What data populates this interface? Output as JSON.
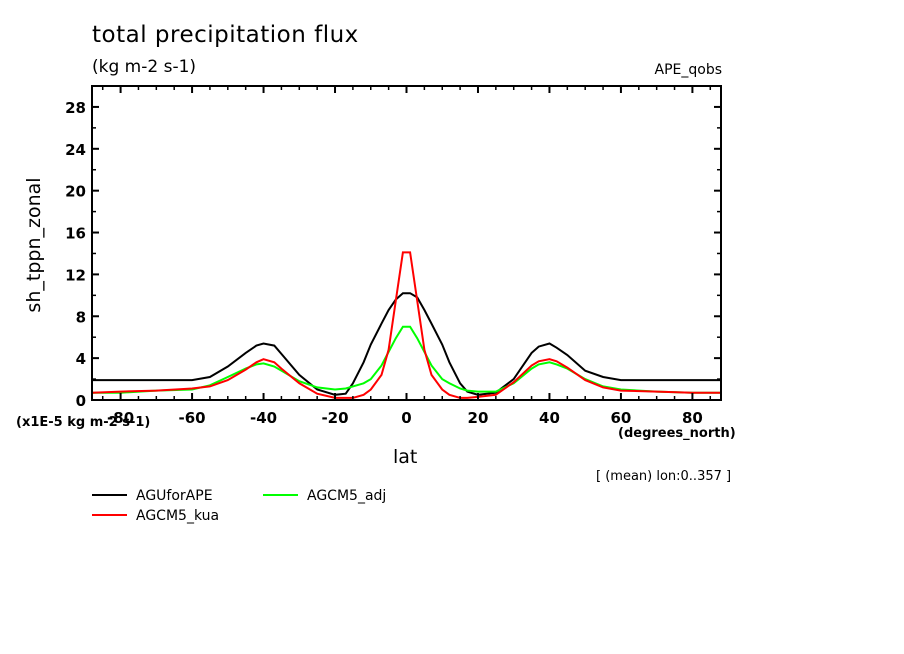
{
  "chart_data": {
    "type": "line",
    "title": "total precipitation flux",
    "units": "(kg m-2 s-1)",
    "dataset_label": "APE_qobs",
    "ylabel": "sh_tppn_zonal",
    "xlabel": "lat",
    "x_units": "(degrees_north)",
    "y_scale_note": "(x1E-5 kg m-2 s-1)",
    "region_note": "[ (mean) lon:0..357 ]",
    "xlim": [
      -88,
      88
    ],
    "ylim": [
      0,
      30
    ],
    "x_ticks": [
      -80,
      -60,
      -40,
      -20,
      0,
      20,
      40,
      60,
      80
    ],
    "x_tick_labels": [
      "-80",
      "-60",
      "-40",
      "-20",
      "0",
      "20",
      "40",
      "60",
      "80"
    ],
    "y_ticks": [
      0,
      4,
      8,
      12,
      16,
      20,
      24,
      28
    ],
    "y_tick_labels": [
      "0",
      "4",
      "8",
      "12",
      "16",
      "20",
      "24",
      "28"
    ],
    "legend": "bottom-left",
    "x": [
      -88,
      -80,
      -70,
      -60,
      -55,
      -50,
      -45,
      -42,
      -40,
      -37,
      -35,
      -30,
      -25,
      -20,
      -17,
      -15,
      -12,
      -10,
      -7,
      -5,
      -3,
      -1,
      1,
      3,
      5,
      7,
      10,
      12,
      15,
      17,
      20,
      25,
      30,
      35,
      37,
      40,
      42,
      45,
      50,
      55,
      60,
      70,
      80,
      88
    ],
    "series": [
      {
        "name": "AGUforAPE",
        "color": "#000000",
        "values": [
          1.9,
          1.9,
          1.9,
          1.9,
          2.2,
          3.2,
          4.5,
          5.2,
          5.4,
          5.2,
          4.4,
          2.4,
          1.0,
          0.5,
          0.6,
          1.6,
          3.6,
          5.3,
          7.3,
          8.6,
          9.6,
          10.2,
          10.2,
          9.8,
          8.6,
          7.3,
          5.3,
          3.6,
          1.6,
          0.8,
          0.5,
          0.7,
          2.0,
          4.5,
          5.1,
          5.4,
          5.0,
          4.3,
          2.8,
          2.2,
          1.9,
          1.9,
          1.9,
          1.9
        ]
      },
      {
        "name": "AGCM5_kua",
        "color": "#ff0000",
        "values": [
          0.7,
          0.8,
          0.9,
          1.1,
          1.3,
          1.9,
          2.9,
          3.6,
          3.9,
          3.6,
          3.0,
          1.6,
          0.6,
          0.2,
          0.2,
          0.2,
          0.5,
          1.0,
          2.4,
          4.8,
          9.5,
          14.1,
          14.1,
          9.5,
          4.8,
          2.4,
          1.0,
          0.5,
          0.2,
          0.2,
          0.3,
          0.5,
          1.7,
          3.3,
          3.7,
          3.9,
          3.7,
          3.1,
          1.9,
          1.2,
          0.9,
          0.8,
          0.7,
          0.7
        ]
      },
      {
        "name": "AGCM5_adj",
        "color": "#00ff00",
        "values": [
          0.7,
          0.7,
          0.9,
          1.0,
          1.4,
          2.2,
          3.0,
          3.4,
          3.5,
          3.2,
          2.8,
          1.8,
          1.2,
          1.0,
          1.1,
          1.3,
          1.6,
          2.0,
          3.3,
          4.6,
          5.9,
          7.0,
          7.0,
          5.9,
          4.6,
          3.3,
          2.0,
          1.6,
          1.1,
          0.9,
          0.8,
          0.8,
          1.6,
          3.0,
          3.4,
          3.6,
          3.4,
          3.0,
          2.0,
          1.3,
          1.0,
          0.8,
          0.7,
          0.7
        ]
      }
    ]
  }
}
